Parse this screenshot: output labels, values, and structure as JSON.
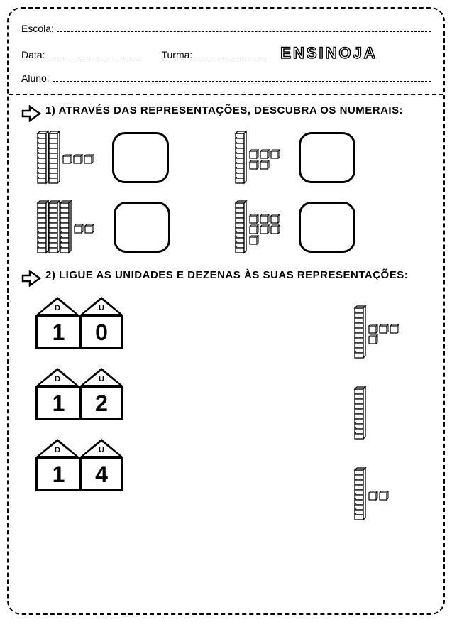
{
  "header": {
    "escola_label": "Escola:",
    "data_label": "Data:",
    "turma_label": "Turma:",
    "aluno_label": "Aluno:",
    "brand": "ENSINOJA"
  },
  "q1": {
    "text": "1) ATRAVÉS DAS REPRESENTAÇÕES, DESCUBRA OS NUMERAIS:",
    "items": [
      {
        "tens": 2,
        "units": 3
      },
      {
        "tens": 1,
        "units": 5
      },
      {
        "tens": 3,
        "units": 2
      },
      {
        "tens": 1,
        "units": 7
      }
    ]
  },
  "q2": {
    "text": "2) LIGUE AS UNIDADES E DEZENAS ÀS SUAS REPRESENTAÇÕES:",
    "d_label": "D",
    "u_label": "U",
    "houses": [
      {
        "d": "1",
        "u": "0"
      },
      {
        "d": "1",
        "u": "2"
      },
      {
        "d": "1",
        "u": "4"
      }
    ],
    "reps": [
      {
        "tens": 1,
        "units": 4
      },
      {
        "tens": 1,
        "units": 0
      },
      {
        "tens": 1,
        "units": 2
      }
    ]
  },
  "style": {
    "stroke": "#000000",
    "bg": "#ffffff",
    "answer_box_radius": 18,
    "font": "Arial",
    "question_fontsize": 15
  }
}
